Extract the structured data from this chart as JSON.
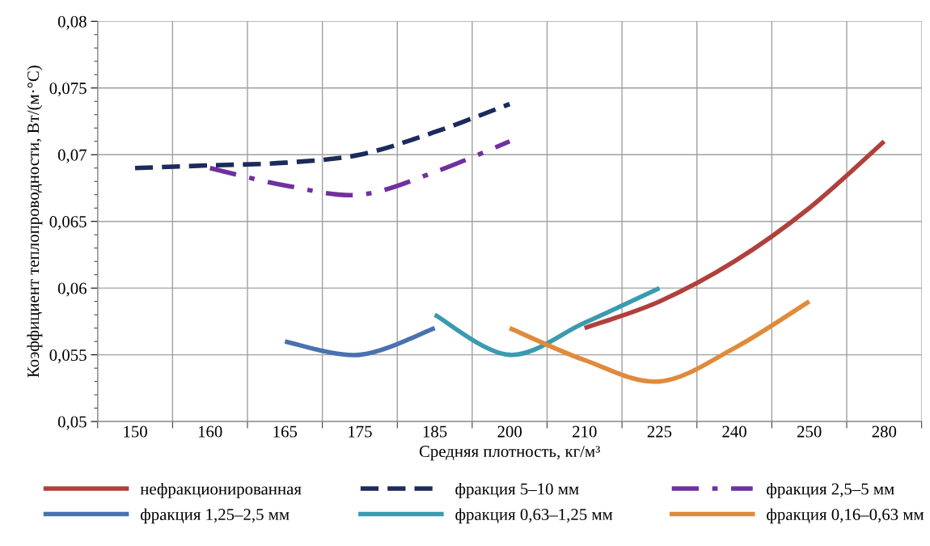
{
  "chart_data": {
    "type": "line",
    "xlabel": "Средняя плотность, кг/м³",
    "ylabel": "Коэффициент теплопроводности, Вт/(м·°С)",
    "categories": [
      "150",
      "160",
      "165",
      "175",
      "185",
      "200",
      "210",
      "225",
      "240",
      "250",
      "280"
    ],
    "ylim": [
      0.05,
      0.08
    ],
    "yticks": [
      {
        "value": 0.05,
        "label": "0,05"
      },
      {
        "value": 0.055,
        "label": "0,055"
      },
      {
        "value": 0.06,
        "label": "0,06"
      },
      {
        "value": 0.065,
        "label": "0,065"
      },
      {
        "value": 0.07,
        "label": "0,07"
      },
      {
        "value": 0.075,
        "label": "0,075"
      },
      {
        "value": 0.08,
        "label": "0,08"
      }
    ],
    "grid": true,
    "legend": "bottom",
    "marker": "none",
    "series": [
      {
        "name": "нефракционированная",
        "color": "#b0403c",
        "line_style": "solid",
        "values": [
          null,
          null,
          null,
          null,
          null,
          null,
          0.057,
          0.059,
          0.062,
          0.066,
          0.071
        ]
      },
      {
        "name": "фракция 5–10 мм",
        "color": "#1c2a5c",
        "line_style": "dashed",
        "values": [
          0.069,
          0.0692,
          0.0694,
          0.07,
          0.0717,
          0.0738,
          null,
          null,
          null,
          null,
          null
        ]
      },
      {
        "name": "фракция 2,5–5 мм",
        "color": "#7030a0",
        "line_style": "dashdot",
        "values": [
          null,
          0.069,
          0.0677,
          0.067,
          0.0687,
          0.071,
          null,
          null,
          null,
          null,
          null
        ]
      },
      {
        "name": "фракция 1,25–2,5 мм",
        "color": "#4a72b0",
        "line_style": "solid",
        "values": [
          null,
          null,
          0.056,
          0.055,
          0.057,
          null,
          null,
          null,
          null,
          null,
          null
        ]
      },
      {
        "name": "фракция 0,63–1,25 мм",
        "color": "#3a9ab0",
        "line_style": "solid",
        "values": [
          null,
          null,
          null,
          null,
          0.058,
          0.055,
          0.0574,
          0.06,
          null,
          null,
          null
        ]
      },
      {
        "name": "фракция 0,16–0,63 мм",
        "color": "#e08a3c",
        "line_style": "solid",
        "values": [
          null,
          null,
          null,
          null,
          null,
          0.057,
          0.0546,
          0.053,
          0.0555,
          0.059,
          null
        ]
      }
    ]
  }
}
